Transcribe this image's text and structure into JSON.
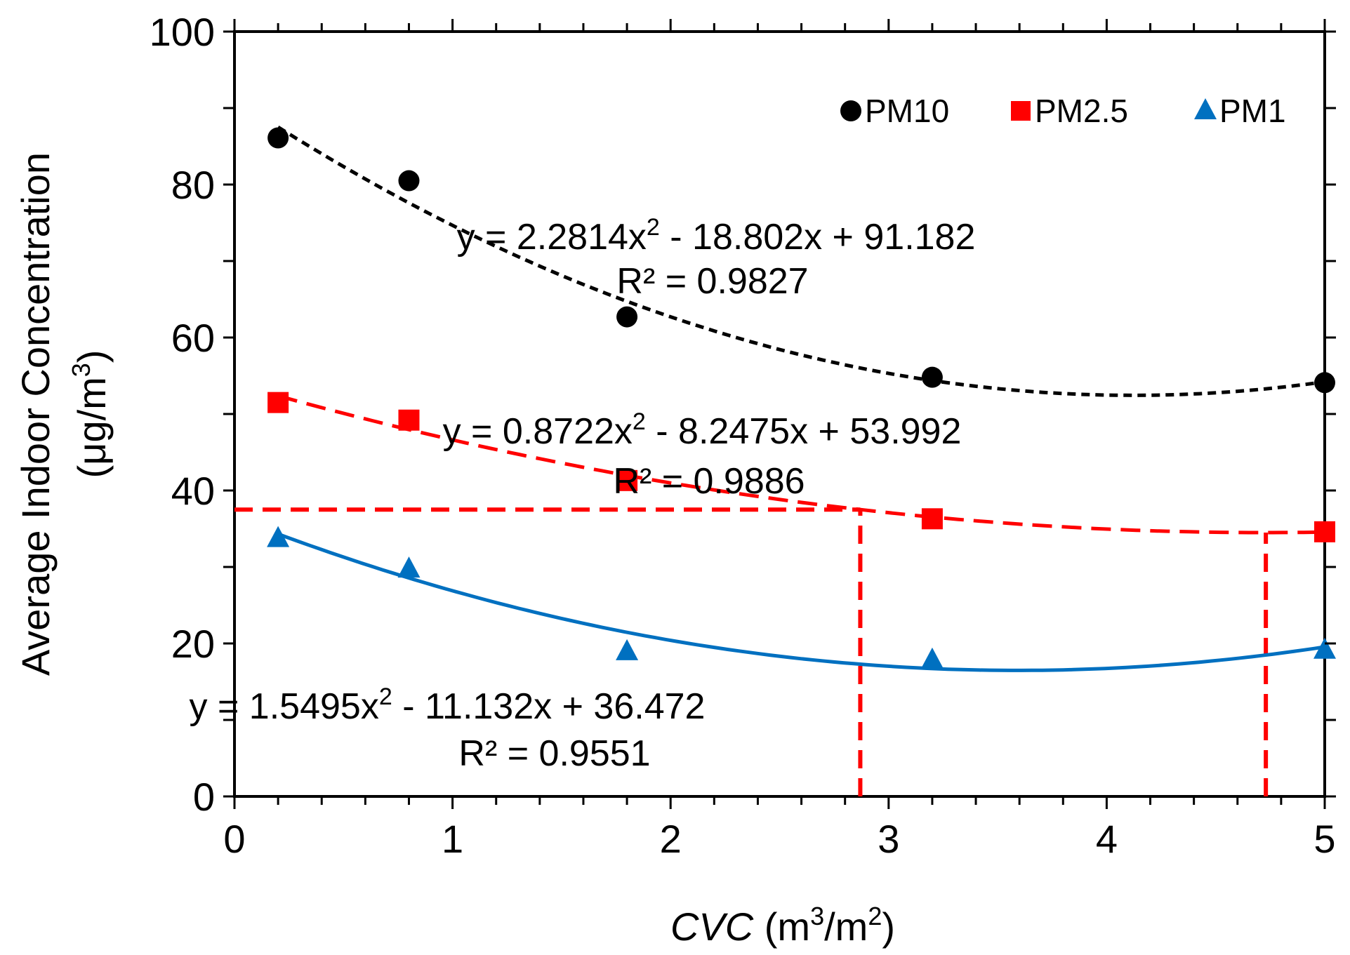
{
  "chart_data": {
    "type": "scatter",
    "title": "",
    "xlabel": {
      "italic": "CVC",
      "unit": " (m",
      "sup1": "3",
      "mid": "/m",
      "sup2": "2",
      "end": ")"
    },
    "ylabel": {
      "line1": "Average Indoor Concentration",
      "line2_pre": "(μg/m",
      "line2_sup": "3",
      "line2_post": ")"
    },
    "xlim": [
      0,
      5
    ],
    "ylim": [
      0,
      100
    ],
    "x_ticks": [
      0,
      1,
      2,
      3,
      4,
      5
    ],
    "x_tick_labels": [
      "0",
      "1",
      "2",
      "3",
      "4",
      "5"
    ],
    "y_ticks": [
      0,
      20,
      40,
      60,
      80,
      100
    ],
    "y_tick_labels": [
      "0",
      "20",
      "40",
      "60",
      "80",
      "100"
    ],
    "grid": false,
    "legend_position": "top-right",
    "series": [
      {
        "name": "PM10",
        "color": "#000000",
        "marker": "circle",
        "x": [
          0.2,
          0.8,
          1.8,
          3.2,
          5.0
        ],
        "y": [
          86.1,
          80.5,
          62.7,
          54.8,
          54.1
        ],
        "fit": {
          "a": 2.2814,
          "b": -18.802,
          "c": 91.182,
          "style": "dotted"
        },
        "equation": {
          "pre": "y = 2.2814x",
          "sup": "2",
          "post": " - 18.802x + 91.182"
        },
        "r2": "R² = 0.9827"
      },
      {
        "name": "PM2.5",
        "color": "#ff0000",
        "marker": "square",
        "x": [
          0.2,
          0.8,
          1.8,
          3.2,
          5.0
        ],
        "y": [
          51.5,
          49.2,
          41.3,
          36.3,
          34.6
        ],
        "fit": {
          "a": 0.8722,
          "b": -8.2475,
          "c": 53.992,
          "style": "dashed"
        },
        "equation": {
          "pre": "y = 0.8722x",
          "sup": "2",
          "post": " - 8.2475x + 53.992"
        },
        "r2": "R² = 0.9886"
      },
      {
        "name": "PM1",
        "color": "#0070c0",
        "marker": "triangle",
        "x": [
          0.2,
          0.8,
          1.8,
          3.2,
          5.0
        ],
        "y": [
          33.8,
          29.8,
          19.0,
          17.9,
          19.2
        ],
        "fit": {
          "a": 1.5495,
          "b": -11.132,
          "c": 36.472,
          "style": "solid"
        },
        "equation": {
          "pre": "y = 1.5495x",
          "sup": "2",
          "post": " - 11.132x + 36.472"
        },
        "r2": "R² = 0.9551"
      }
    ],
    "reference_lines": {
      "color": "#ff0000",
      "horizontal": {
        "y": 37.5,
        "x_from": 0,
        "x_to": 2.87
      },
      "verticals": [
        {
          "x": 2.87,
          "y_from": 0,
          "y_to": 37.5
        },
        {
          "x": 4.73,
          "y_from": 0,
          "y_to": 34.5
        }
      ]
    }
  }
}
